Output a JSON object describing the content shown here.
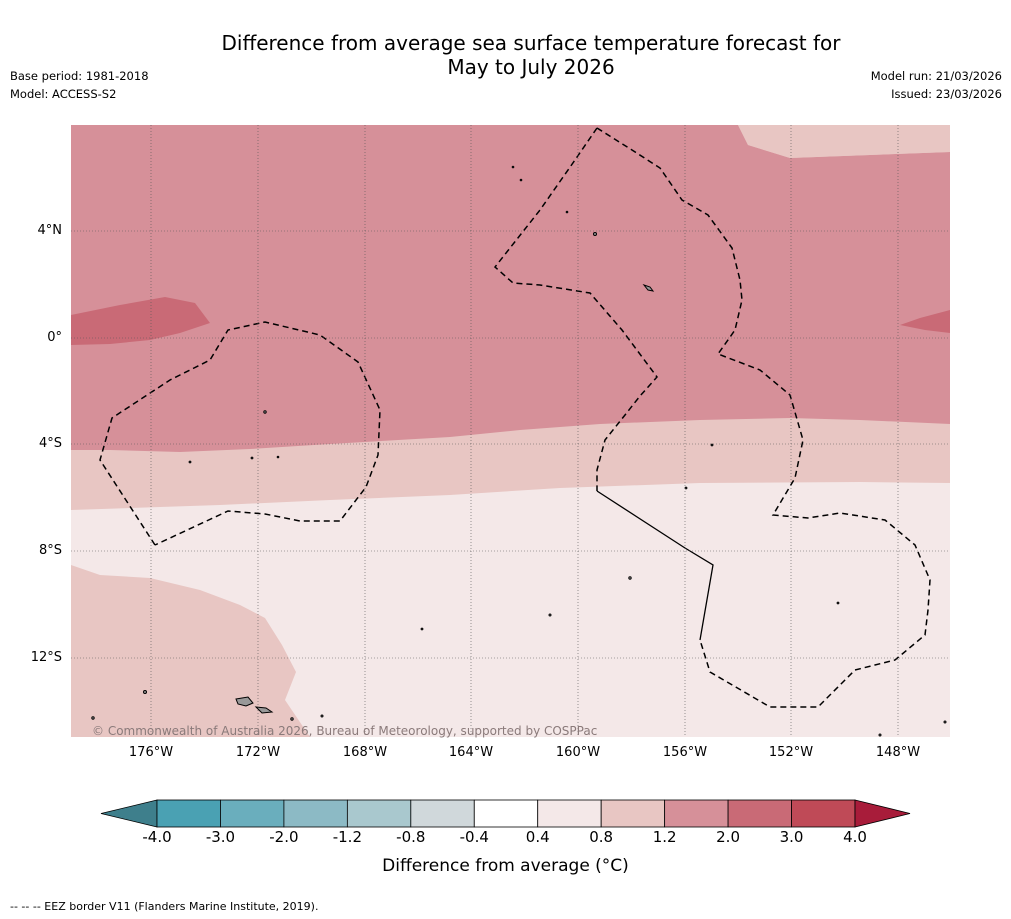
{
  "title_line1": "Difference from average sea surface temperature forecast for",
  "title_line2": "May to July 2026",
  "meta": {
    "base_period": "Base period: 1981-2018",
    "model": "Model: ACCESS-S2",
    "model_run": "Model run: 21/03/2026",
    "issued": "Issued: 23/03/2026"
  },
  "map": {
    "lon_labels": [
      "176°W",
      "172°W",
      "168°W",
      "164°W",
      "160°W",
      "156°W",
      "152°W",
      "148°W"
    ],
    "lat_labels": [
      "4°N",
      "0°",
      "4°S",
      "8°S",
      "12°S"
    ],
    "copyright": "© Commonwealth of Australia 2026, Bureau of Meteorology, supported by COSPPac",
    "colors": {
      "band_3_4": "#c96a76",
      "band_2_3": "#d69099",
      "band_12_2": "#e8c6c3",
      "band_08_12": "#f4e8e8",
      "land": "#999999",
      "border": "#000000"
    }
  },
  "colorbar": {
    "ticks": [
      "-4.0",
      "-3.0",
      "-2.0",
      "-1.2",
      "-0.8",
      "-0.4",
      "0.4",
      "0.8",
      "1.2",
      "2.0",
      "3.0",
      "4.0"
    ],
    "colors": [
      "#3e7f8c",
      "#4aa1b3",
      "#6aaebd",
      "#8cbac5",
      "#a9c8ce",
      "#d0d8db",
      "#ffffff",
      "#f4e8e8",
      "#e8c6c3",
      "#d69099",
      "#c96a76",
      "#bf4a57",
      "#a81c3a"
    ],
    "label": "Difference from average (°C)"
  },
  "footnote": "--  --  -- EEZ border V11 (Flanders Marine Institute, 2019)."
}
